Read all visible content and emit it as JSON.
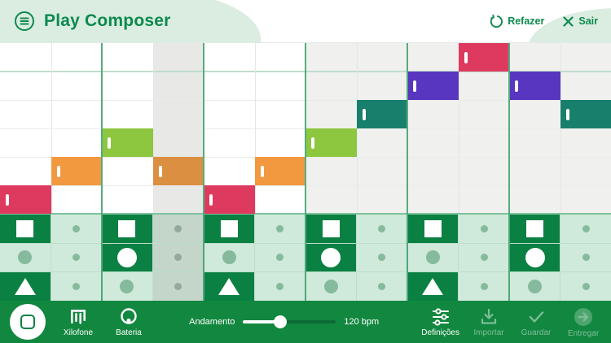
{
  "header": {
    "title": "Play Composer",
    "redo_label": "Refazer",
    "exit_label": "Sair"
  },
  "colors": {
    "accent_green": "#0B8A4D",
    "toolbar_green": "#12873F",
    "header_mint": "#DBECE1",
    "cell_active": "#0B8043",
    "cell_inactive": "#CFE9DA",
    "cell_inactive_highlighted": "#C4D5CA",
    "step_dot": "#85BB9C",
    "note_red": "#DE3A60",
    "note_orange": "#F2993F",
    "note_orange_dim": "#DB8F41",
    "note_green": "#8DC63F",
    "note_teal": "#187F6C",
    "note_purple": "#5936BF"
  },
  "sequencer": {
    "columns": 12,
    "melody_rows": 6,
    "beat_every_columns": 2,
    "highlight_column": 4,
    "right_section_start_column": 7,
    "notes": [
      {
        "col": 1,
        "row": 6,
        "color": "note_red"
      },
      {
        "col": 2,
        "row": 5,
        "color": "note_orange"
      },
      {
        "col": 3,
        "row": 4,
        "color": "note_green"
      },
      {
        "col": 4,
        "row": 5,
        "color": "note_orange_dim"
      },
      {
        "col": 5,
        "row": 6,
        "color": "note_red"
      },
      {
        "col": 6,
        "row": 5,
        "color": "note_orange"
      },
      {
        "col": 7,
        "row": 4,
        "color": "note_green"
      },
      {
        "col": 8,
        "row": 3,
        "color": "note_teal"
      },
      {
        "col": 9,
        "row": 2,
        "color": "note_purple"
      },
      {
        "col": 10,
        "row": 1,
        "color": "note_red"
      },
      {
        "col": 11,
        "row": 2,
        "color": "note_purple"
      },
      {
        "col": 12,
        "row": 3,
        "color": "note_teal"
      }
    ],
    "percussion_rows": [
      {
        "shape": "square",
        "steps": [
          "on",
          "dot",
          "on",
          "dot",
          "on",
          "dot",
          "on",
          "dot",
          "on",
          "dot",
          "on",
          "dot"
        ]
      },
      {
        "shape": "circle",
        "steps": [
          "beat",
          "dot",
          "on",
          "dot",
          "beat",
          "dot",
          "on",
          "dot",
          "beat",
          "dot",
          "on",
          "dot"
        ]
      },
      {
        "shape": "triangle",
        "steps": [
          "on",
          "dot",
          "beat",
          "dot",
          "on",
          "dot",
          "beat",
          "dot",
          "on",
          "dot",
          "beat",
          "dot"
        ]
      }
    ]
  },
  "toolbar": {
    "stop_button_icon": "stop-icon",
    "instruments": [
      {
        "label": "Xilofone",
        "icon": "xylophone-icon"
      },
      {
        "label": "Bateria",
        "icon": "drum-icon"
      }
    ],
    "tempo": {
      "label": "Andamento",
      "value": "120 bpm",
      "slider_percent": 40
    },
    "actions": [
      {
        "label": "Definições",
        "icon": "settings-sliders-icon",
        "enabled": true
      },
      {
        "label": "Importar",
        "icon": "download-icon",
        "enabled": false
      },
      {
        "label": "Guardar",
        "icon": "check-icon",
        "enabled": false
      },
      {
        "label": "Entregar",
        "icon": "arrow-circle-icon",
        "enabled": false
      }
    ]
  }
}
